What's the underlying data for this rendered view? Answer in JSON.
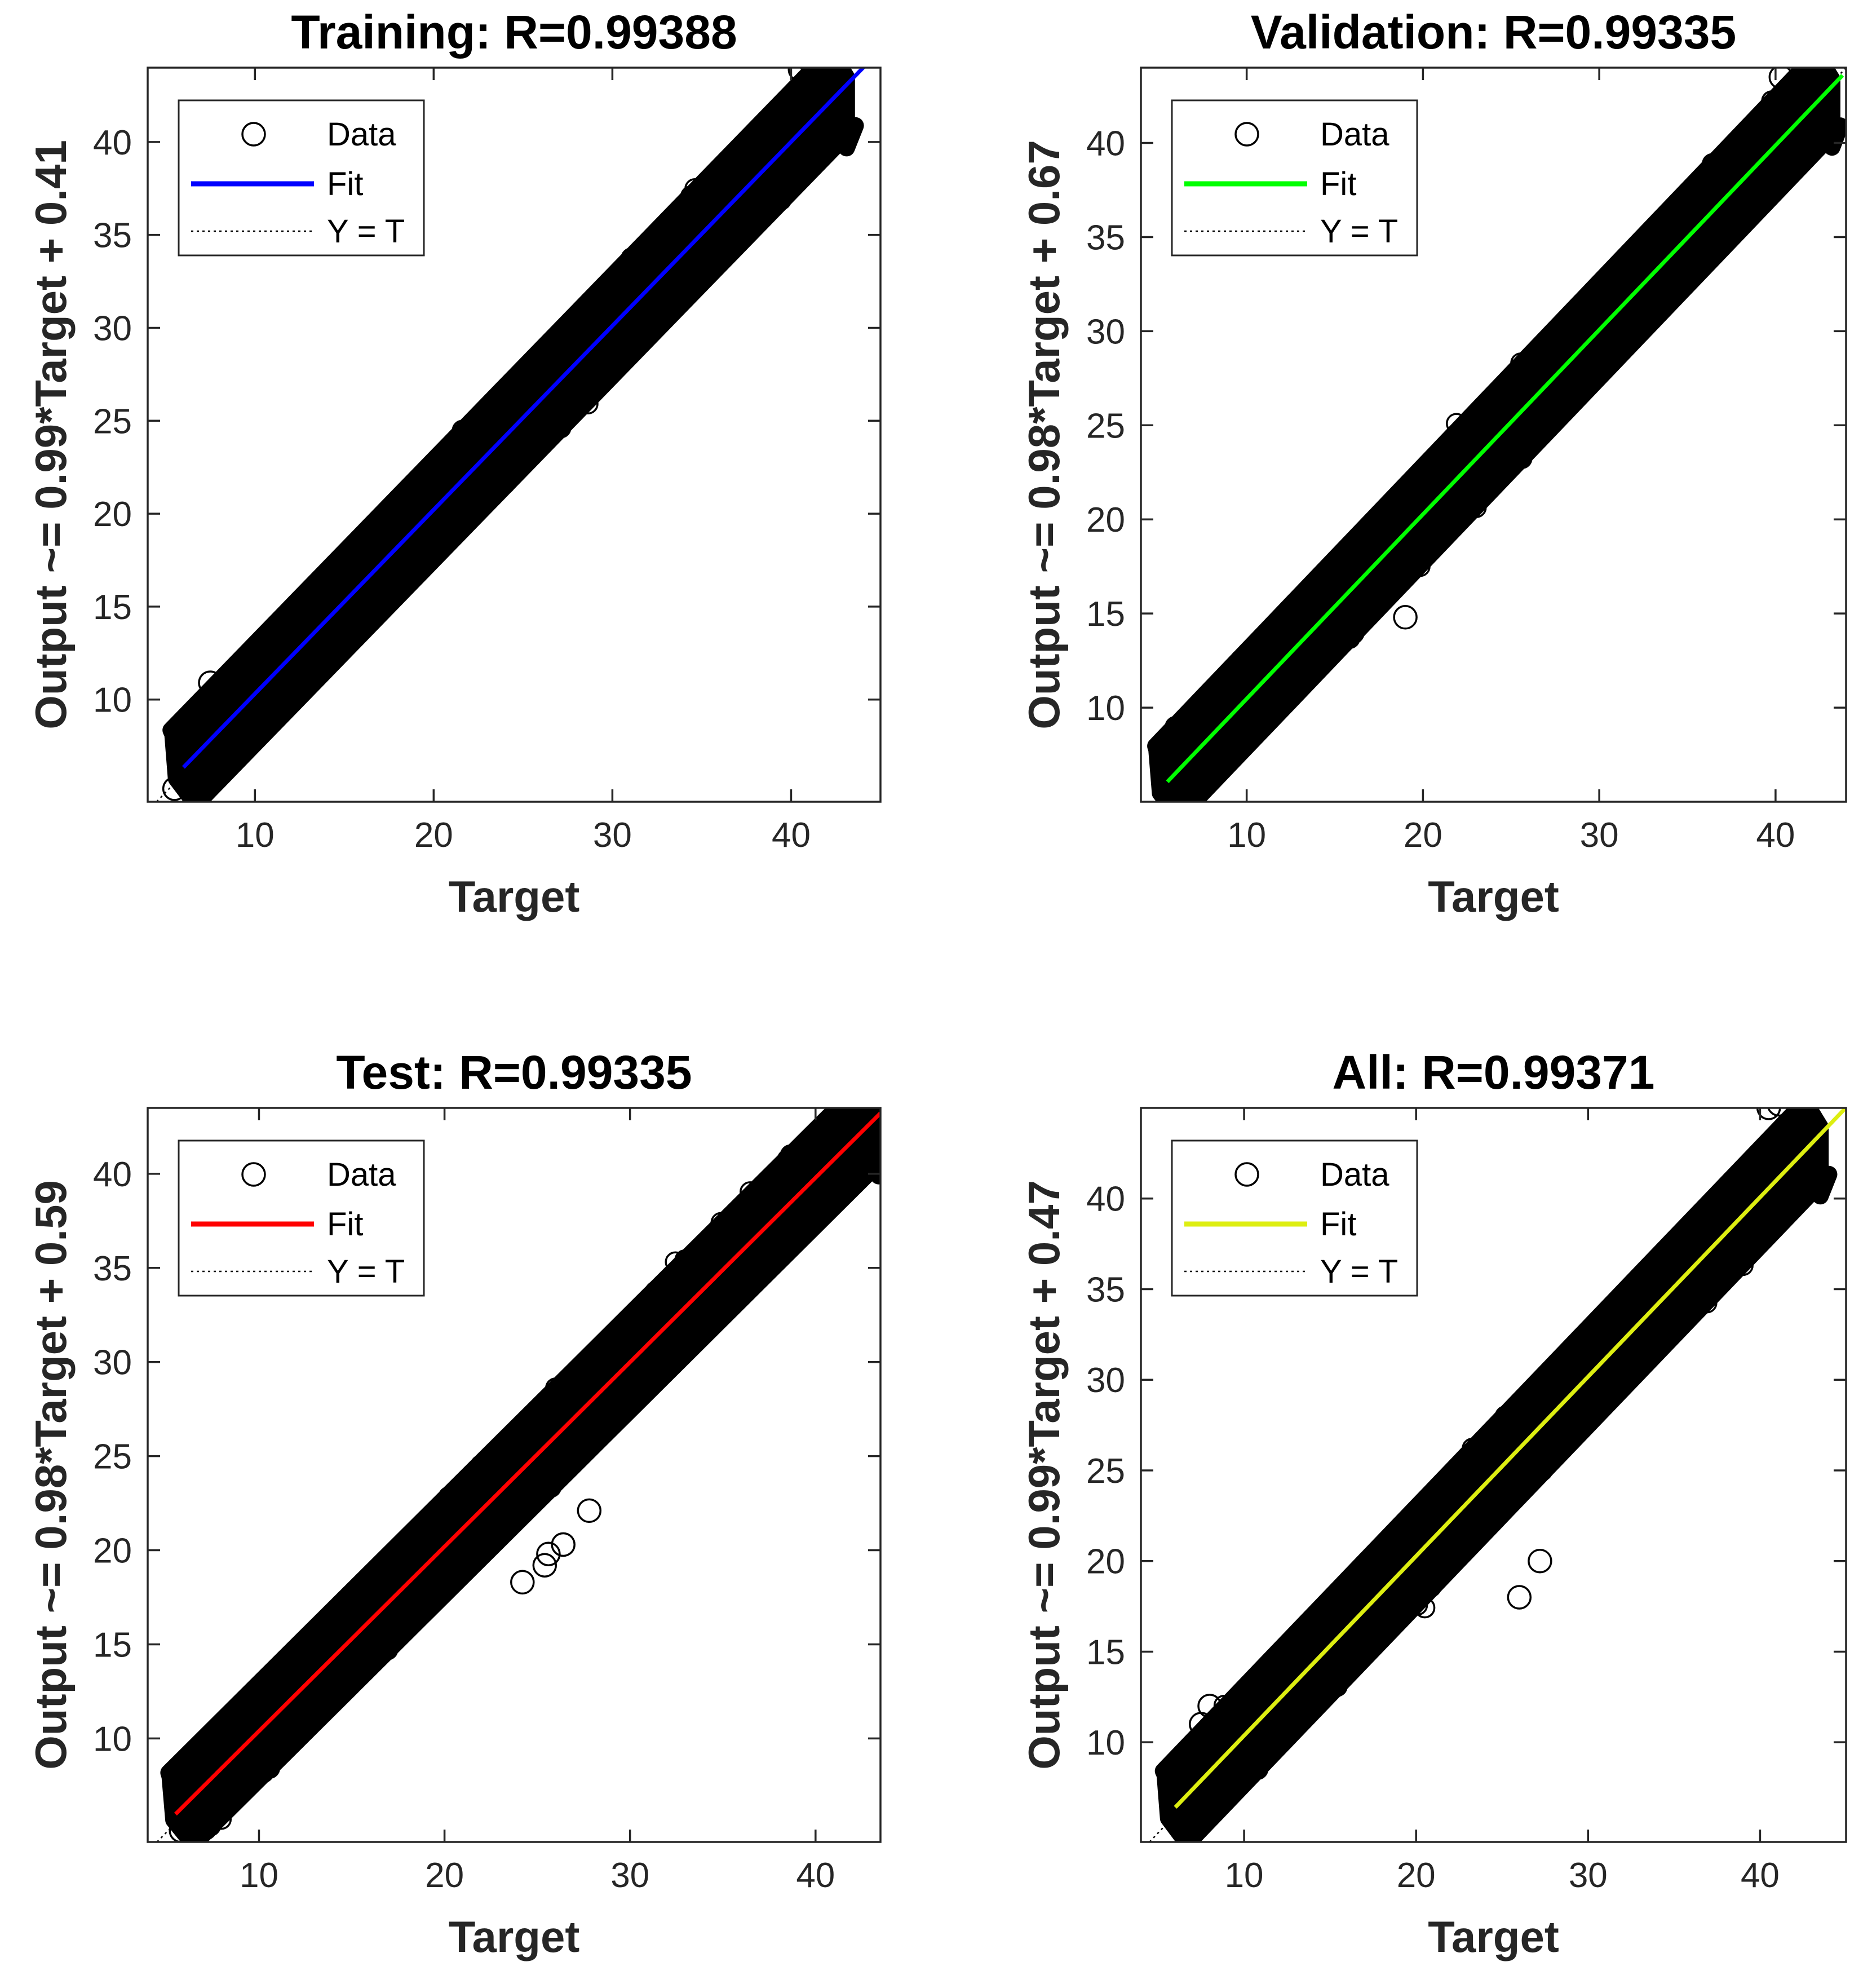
{
  "colors": {
    "data_marker": "#000000",
    "axes": "#262626",
    "identity_line": "#000000",
    "background": "#ffffff"
  },
  "legend_labels": {
    "data": "Data",
    "fit": "Fit",
    "identity": "Y = T"
  },
  "chart_data": [
    {
      "type": "scatter",
      "title": "Training: R=0.99388",
      "xlabel": "Target",
      "ylabel": "Output ~= 0.99*Target + 0.41",
      "xlim": [
        4,
        45
      ],
      "ylim": [
        4.5,
        44
      ],
      "xticks": [
        10,
        20,
        30,
        40
      ],
      "yticks": [
        10,
        15,
        20,
        25,
        30,
        35,
        40
      ],
      "r": 0.99388,
      "fit": {
        "slope": 0.99,
        "intercept": 0.41,
        "x_range": [
          6,
          45
        ],
        "color": "#0000ff"
      },
      "identity_line": true,
      "scatter_band": {
        "x_range": [
          6,
          42.9
        ],
        "half_width": 2.0
      },
      "outliers": [
        [
          40.5,
          43.9
        ],
        [
          41.1,
          44.3
        ],
        [
          7.5,
          10.9
        ],
        [
          5.5,
          5.2
        ]
      ],
      "legend": {
        "position": "top-left",
        "entries": [
          "Data",
          "Fit",
          "Y = T"
        ]
      },
      "grid": false
    },
    {
      "type": "scatter",
      "title": "Validation: R=0.99335",
      "xlabel": "Target",
      "ylabel": "Output ~= 0.98*Target + 0.67",
      "xlim": [
        4,
        44
      ],
      "ylim": [
        5,
        44
      ],
      "xticks": [
        10,
        20,
        30,
        40
      ],
      "yticks": [
        10,
        15,
        20,
        25,
        30,
        35,
        40
      ],
      "r": 0.99335,
      "fit": {
        "slope": 0.98,
        "intercept": 0.67,
        "x_range": [
          5.5,
          43.8
        ],
        "color": "#00ff00"
      },
      "identity_line": true,
      "scatter_band": {
        "x_range": [
          5.5,
          43
        ],
        "half_width": 1.9
      },
      "outliers": [
        [
          40.3,
          43.5
        ],
        [
          41.2,
          43.2
        ],
        [
          17.5,
          16.5
        ],
        [
          19.0,
          14.8
        ],
        [
          16.0,
          14.0
        ],
        [
          22.4,
          21.0
        ]
      ],
      "legend": {
        "position": "top-left",
        "entries": [
          "Data",
          "Fit",
          "Y = T"
        ]
      },
      "grid": false
    },
    {
      "type": "scatter",
      "title": "Test: R=0.99335",
      "xlabel": "Target",
      "ylabel": "Output ~= 0.98*Target + 0.59",
      "xlim": [
        4,
        43.5
      ],
      "ylim": [
        4.5,
        43.5
      ],
      "xticks": [
        10,
        20,
        30,
        40
      ],
      "yticks": [
        10,
        15,
        20,
        25,
        30,
        35,
        40
      ],
      "r": 0.99335,
      "fit": {
        "slope": 0.98,
        "intercept": 0.59,
        "x_range": [
          5.5,
          43.5
        ],
        "color": "#ff0000"
      },
      "identity_line": true,
      "scatter_band": {
        "x_range": [
          5.8,
          43.2
        ],
        "half_width": 1.9
      },
      "outliers": [
        [
          24.2,
          18.3
        ],
        [
          25.4,
          19.2
        ],
        [
          25.6,
          19.8
        ],
        [
          26.4,
          20.3
        ],
        [
          27.8,
          22.1
        ],
        [
          5.8,
          5.1
        ]
      ],
      "legend": {
        "position": "top-left",
        "entries": [
          "Data",
          "Fit",
          "Y = T"
        ]
      },
      "grid": false
    },
    {
      "type": "scatter",
      "title": "All: R=0.99371",
      "xlabel": "Target",
      "ylabel": "Output ~= 0.99*Target + 0.47",
      "xlim": [
        4,
        45
      ],
      "ylim": [
        4.5,
        45
      ],
      "xticks": [
        10,
        20,
        30,
        40
      ],
      "yticks": [
        10,
        15,
        20,
        25,
        30,
        35,
        40
      ],
      "r": 0.99371,
      "fit": {
        "slope": 0.99,
        "intercept": 0.47,
        "x_range": [
          6,
          45
        ],
        "color": "#ddee11"
      },
      "identity_line": true,
      "scatter_band": {
        "x_range": [
          6,
          43.3
        ],
        "half_width": 2.0
      },
      "outliers": [
        [
          40.5,
          45.0
        ],
        [
          41.1,
          45.2
        ],
        [
          26.0,
          18.0
        ],
        [
          27.2,
          20.0
        ],
        [
          7.5,
          11.0
        ],
        [
          8.0,
          12.0
        ]
      ],
      "legend": {
        "position": "top-left",
        "entries": [
          "Data",
          "Fit",
          "Y = T"
        ]
      },
      "grid": false
    }
  ]
}
